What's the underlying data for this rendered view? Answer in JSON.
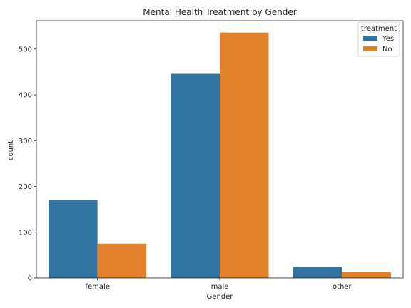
{
  "chart_data": {
    "type": "bar",
    "title": "Mental Health Treatment by Gender",
    "xlabel": "Gender",
    "ylabel": "count",
    "categories": [
      "female",
      "male",
      "other"
    ],
    "series": [
      {
        "name": "Yes",
        "values": [
          170,
          446,
          24
        ],
        "color": "#3274a1"
      },
      {
        "name": "No",
        "values": [
          75,
          536,
          13
        ],
        "color": "#e1812c"
      }
    ],
    "ylim": [
      0,
      562
    ],
    "yticks": [
      0,
      100,
      200,
      300,
      400,
      500
    ],
    "legend": {
      "title": "treatment",
      "placement": "top-right"
    },
    "grid": false
  }
}
